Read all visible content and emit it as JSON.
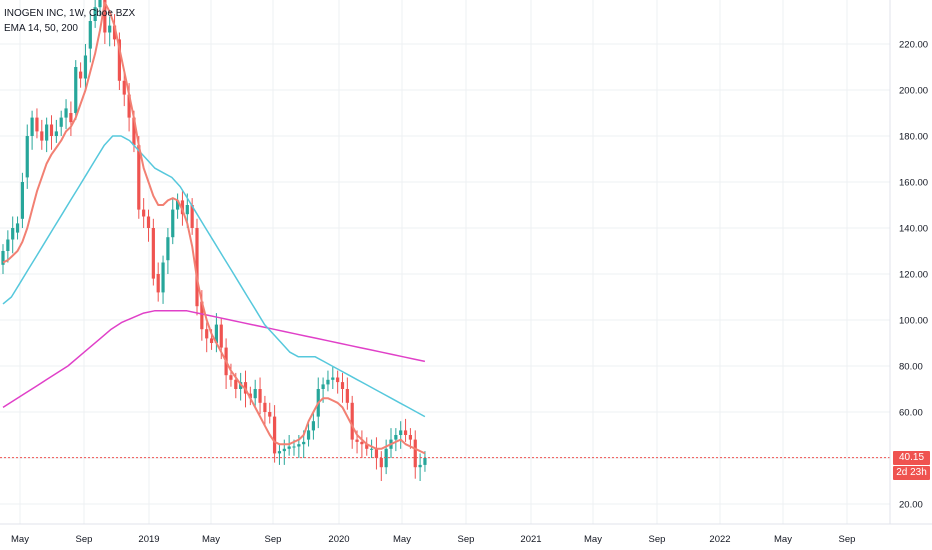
{
  "header": {
    "symbol_line": "INOGEN INC, 1W, Cboe BZX",
    "indicator_line": "EMA 14, 50, 200"
  },
  "price_axis": {
    "labels": [
      "220.00",
      "200.00",
      "180.00",
      "160.00",
      "140.00",
      "120.00",
      "100.00",
      "80.00",
      "60.00",
      "40.00",
      "20.00"
    ]
  },
  "time_axis": {
    "labels": [
      "May",
      "Sep",
      "2019",
      "May",
      "Sep",
      "2020",
      "May",
      "Sep",
      "2021",
      "May",
      "Sep",
      "2022",
      "May",
      "Sep"
    ]
  },
  "last_price": {
    "value": "40.15",
    "countdown": "2d 23h",
    "color": "#ef5350"
  },
  "colors": {
    "up": "#26a69a",
    "down": "#ef5350",
    "ema14": "#f28073",
    "ema50": "#56c8dc",
    "ema200": "#e040c8",
    "grid": "#eef0f3"
  },
  "chart_data": {
    "type": "candlestick",
    "interval": "1W",
    "ylim": [
      10,
      237
    ],
    "closes": [
      130,
      135,
      140,
      142,
      160,
      180,
      188,
      182,
      178,
      185,
      180,
      182,
      188,
      192,
      186,
      210,
      205,
      215,
      230,
      236,
      242,
      225,
      228,
      222,
      204,
      198,
      188,
      176,
      148,
      145,
      140,
      118,
      112,
      125,
      136,
      148,
      152,
      146,
      150,
      140,
      106,
      96,
      92,
      90,
      98,
      88,
      76,
      74,
      70,
      73,
      68,
      66,
      70,
      64,
      60,
      58,
      42,
      43,
      44,
      45,
      45,
      46,
      47,
      52,
      56,
      70,
      72,
      74,
      75,
      73,
      70,
      64,
      48,
      47,
      46,
      44,
      44,
      40,
      36,
      44,
      48,
      50,
      52,
      50,
      48,
      36,
      37,
      40
    ],
    "opens": [
      124,
      130,
      135,
      138,
      144,
      162,
      180,
      188,
      182,
      178,
      185,
      180,
      184,
      188,
      190,
      190,
      208,
      205,
      218,
      230,
      236,
      242,
      225,
      228,
      222,
      204,
      198,
      188,
      176,
      148,
      145,
      140,
      120,
      112,
      126,
      136,
      148,
      152,
      146,
      150,
      140,
      108,
      96,
      92,
      90,
      98,
      88,
      76,
      74,
      70,
      73,
      68,
      66,
      70,
      64,
      60,
      58,
      42,
      43,
      44,
      45,
      45,
      46,
      48,
      52,
      58,
      70,
      72,
      74,
      75,
      73,
      70,
      64,
      48,
      47,
      46,
      44,
      44,
      40,
      36,
      44,
      48,
      50,
      52,
      50,
      48,
      36,
      37
    ],
    "ema_14": [
      125,
      126,
      128,
      130,
      134,
      140,
      148,
      156,
      162,
      168,
      172,
      175,
      178,
      182,
      184,
      188,
      194,
      200,
      208,
      216,
      226,
      238,
      234,
      228,
      218,
      208,
      198,
      188,
      176,
      166,
      160,
      154,
      150,
      150,
      152,
      153,
      152,
      148,
      142,
      132,
      118,
      108,
      100,
      94,
      90,
      86,
      82,
      78,
      75,
      72,
      70,
      66,
      62,
      58,
      54,
      50,
      47,
      46,
      46,
      46,
      47,
      48,
      50,
      56,
      60,
      64,
      66,
      66,
      65,
      64,
      62,
      58,
      54,
      50,
      48,
      46,
      45,
      44,
      44,
      45,
      46,
      47,
      48,
      46,
      45,
      44,
      43,
      42
    ],
    "ema_50": [
      107,
      110,
      116,
      122,
      128,
      134,
      140,
      146,
      152,
      158,
      164,
      170,
      176,
      180,
      180,
      178,
      174,
      170,
      166,
      164,
      162,
      158,
      152,
      146,
      140,
      134,
      128,
      122,
      116,
      110,
      104,
      98,
      94,
      90,
      86,
      84,
      84,
      84,
      82,
      80,
      78,
      76,
      74,
      72,
      70,
      68,
      66,
      64,
      62,
      60,
      58
    ],
    "ema_200": [
      62,
      65,
      68,
      71,
      74,
      77,
      80,
      84,
      88,
      92,
      96,
      99,
      101,
      103,
      104,
      104,
      104,
      104,
      103,
      102,
      101,
      100,
      99,
      98,
      97,
      96,
      95,
      94,
      93,
      92,
      91,
      90,
      89,
      88,
      87,
      86,
      85,
      84,
      83,
      82
    ]
  }
}
